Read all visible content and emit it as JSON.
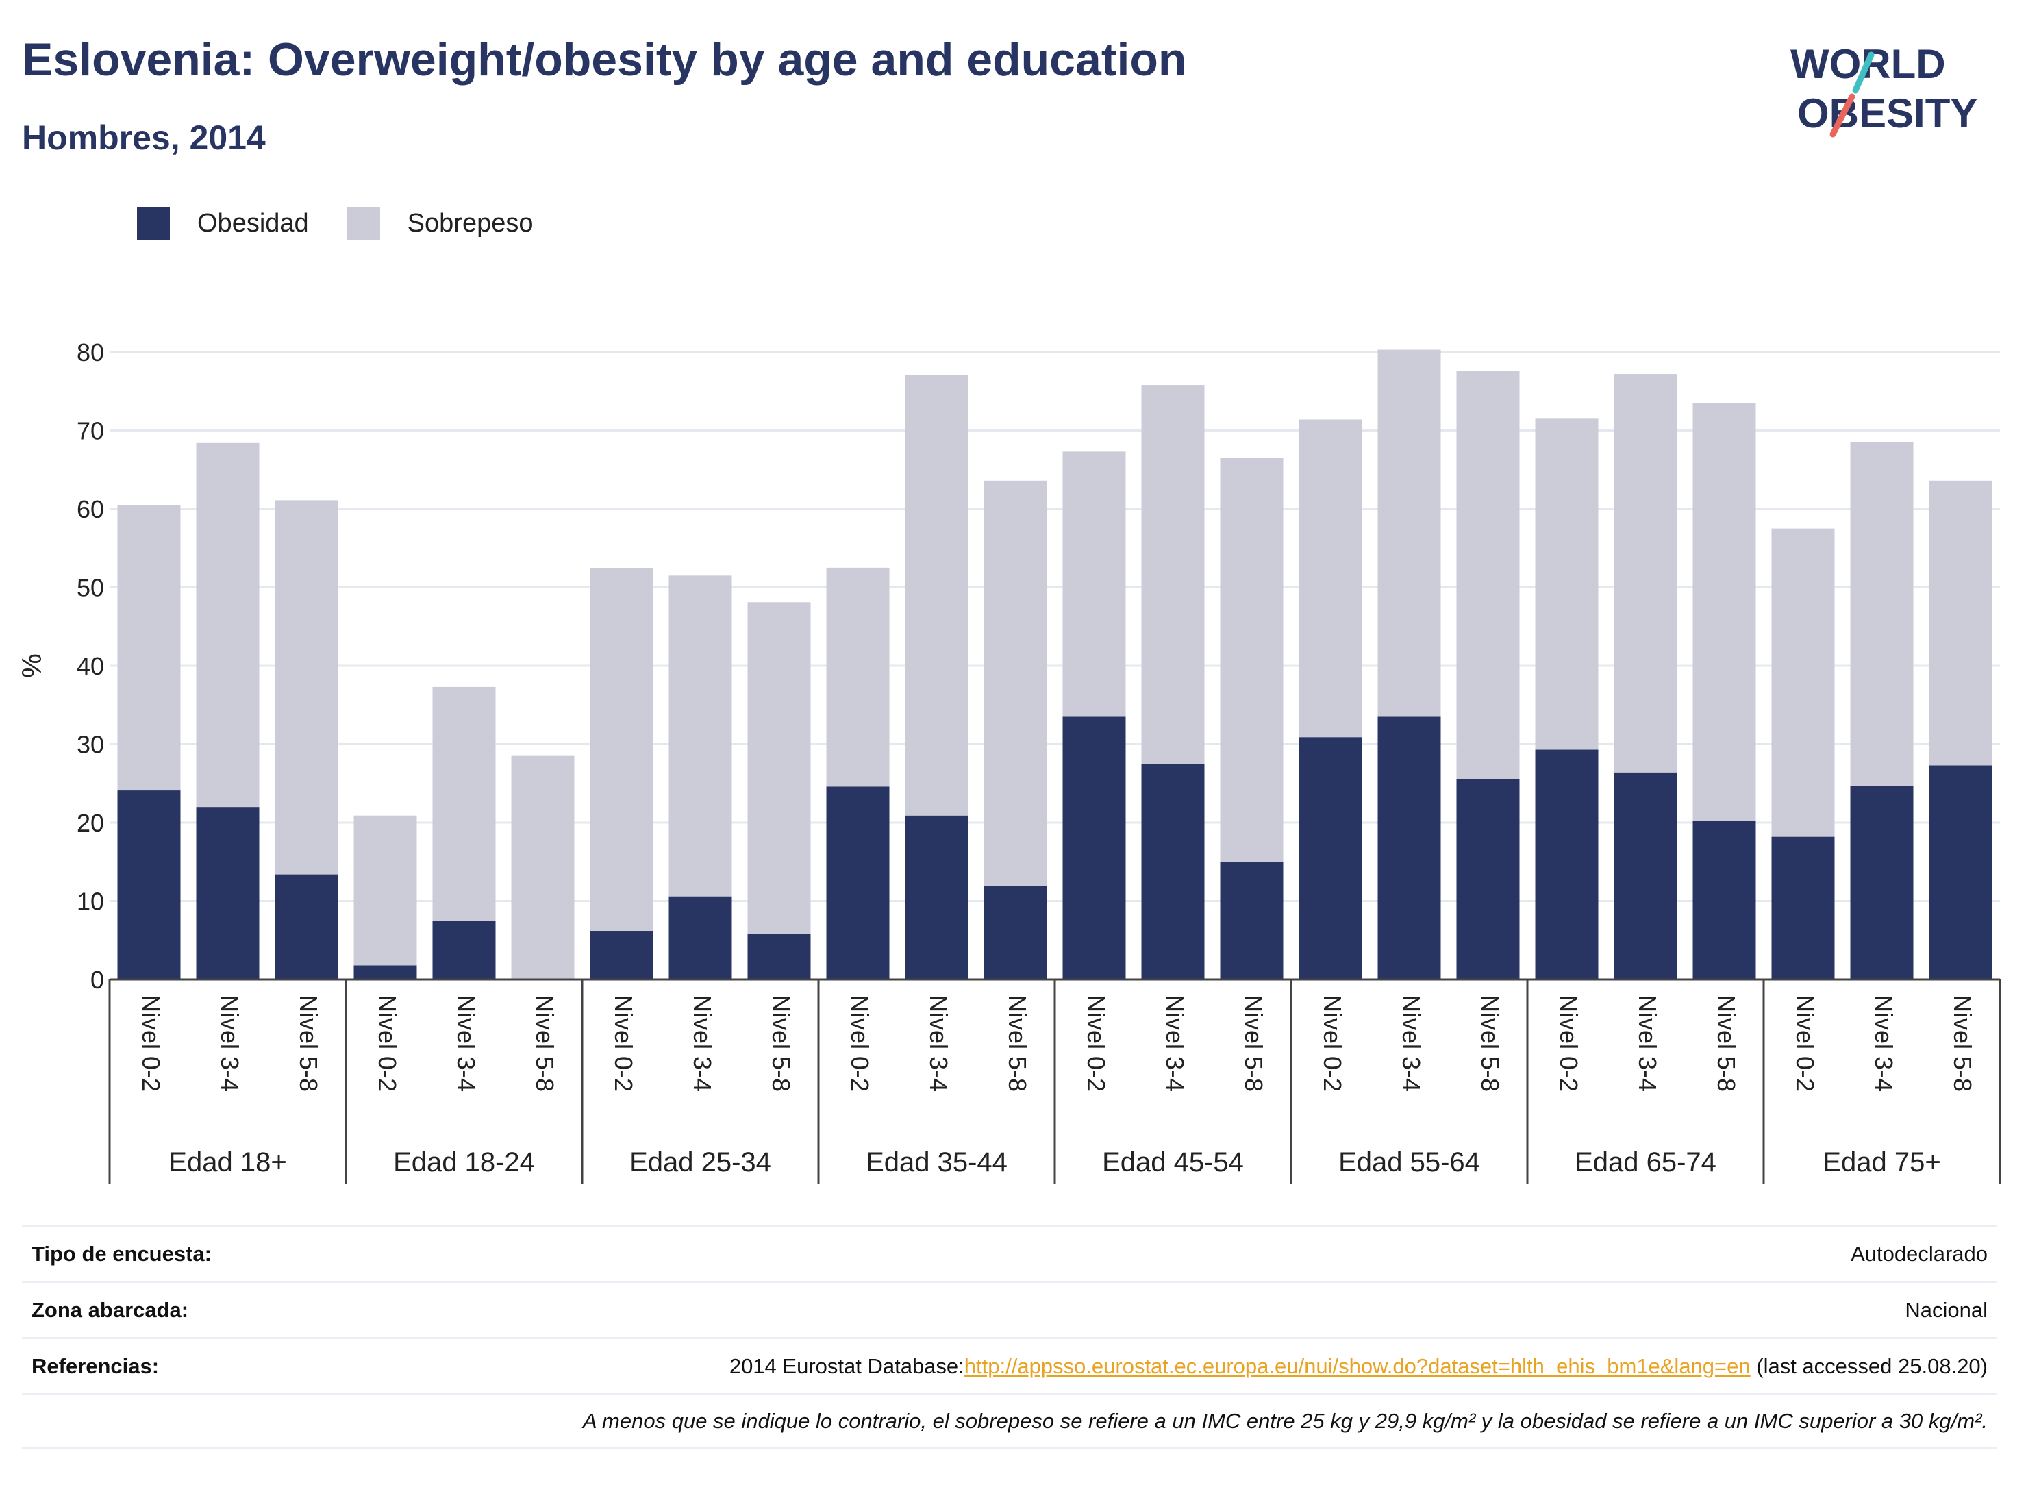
{
  "header": {
    "title": "Eslovenia: Overweight/obesity by age and education",
    "subtitle": "Hombres, 2014"
  },
  "logo": {
    "line1": "WORLD",
    "line2": "OBESITY"
  },
  "legend": {
    "items": [
      {
        "label": "Obesidad",
        "color": "#283562"
      },
      {
        "label": "Sobrepeso",
        "color": "#cbccd8"
      }
    ]
  },
  "chart_data": {
    "type": "bar",
    "stacked": true,
    "ylabel": "%",
    "ylim": [
      0,
      80
    ],
    "yticks": [
      0,
      10,
      20,
      30,
      40,
      50,
      60,
      70,
      80
    ],
    "grid": true,
    "legend_position": "top-left",
    "groups": [
      {
        "label": "Edad 18+",
        "categories": [
          "Nivel 0-2",
          "Nivel 3-4",
          "Nivel 5-8"
        ]
      },
      {
        "label": "Edad 18-24",
        "categories": [
          "Nivel 0-2",
          "Nivel 3-4",
          "Nivel 5-8"
        ]
      },
      {
        "label": "Edad 25-34",
        "categories": [
          "Nivel 0-2",
          "Nivel 3-4",
          "Nivel 5-8"
        ]
      },
      {
        "label": "Edad 35-44",
        "categories": [
          "Nivel 0-2",
          "Nivel 3-4",
          "Nivel 5-8"
        ]
      },
      {
        "label": "Edad 45-54",
        "categories": [
          "Nivel 0-2",
          "Nivel 3-4",
          "Nivel 5-8"
        ]
      },
      {
        "label": "Edad 55-64",
        "categories": [
          "Nivel 0-2",
          "Nivel 3-4",
          "Nivel 5-8"
        ]
      },
      {
        "label": "Edad 65-74",
        "categories": [
          "Nivel 0-2",
          "Nivel 3-4",
          "Nivel 5-8"
        ]
      },
      {
        "label": "Edad 75+",
        "categories": [
          "Nivel 0-2",
          "Nivel 3-4",
          "Nivel 5-8"
        ]
      }
    ],
    "series": [
      {
        "name": "Obesidad",
        "color": "#283562",
        "values": [
          24.1,
          22.0,
          13.4,
          1.8,
          7.5,
          0.0,
          6.2,
          10.6,
          5.8,
          24.6,
          20.9,
          11.9,
          33.5,
          27.5,
          15.0,
          30.9,
          33.5,
          25.6,
          29.3,
          26.4,
          20.2,
          18.2,
          24.7,
          27.3
        ]
      },
      {
        "name": "Sobrepeso",
        "color": "#cbccd8",
        "values": [
          36.4,
          46.4,
          47.7,
          19.1,
          29.8,
          28.5,
          46.2,
          40.9,
          42.3,
          27.9,
          56.2,
          51.7,
          33.8,
          48.3,
          51.5,
          40.5,
          46.8,
          52.0,
          42.2,
          50.8,
          53.3,
          39.3,
          43.8,
          36.3
        ]
      }
    ]
  },
  "info": {
    "survey_type_label": "Tipo de encuesta:",
    "survey_type_value": "Autodeclarado",
    "area_label": "Zona abarcada:",
    "area_value": "Nacional",
    "references_label": "Referencias:",
    "references_prefix": "2014 Eurostat Database:",
    "references_link": "http://appsso.eurostat.ec.europa.eu/nui/show.do?dataset=hlth_ehis_bm1e&lang=en",
    "references_suffix": " (last accessed 25.08.20)",
    "note": "A menos que se indique lo contrario, el sobrepeso se refiere a un IMC entre 25 kg y 29,9 kg/m² y la obesidad se refiere a un IMC superior a 30 kg/m²."
  }
}
